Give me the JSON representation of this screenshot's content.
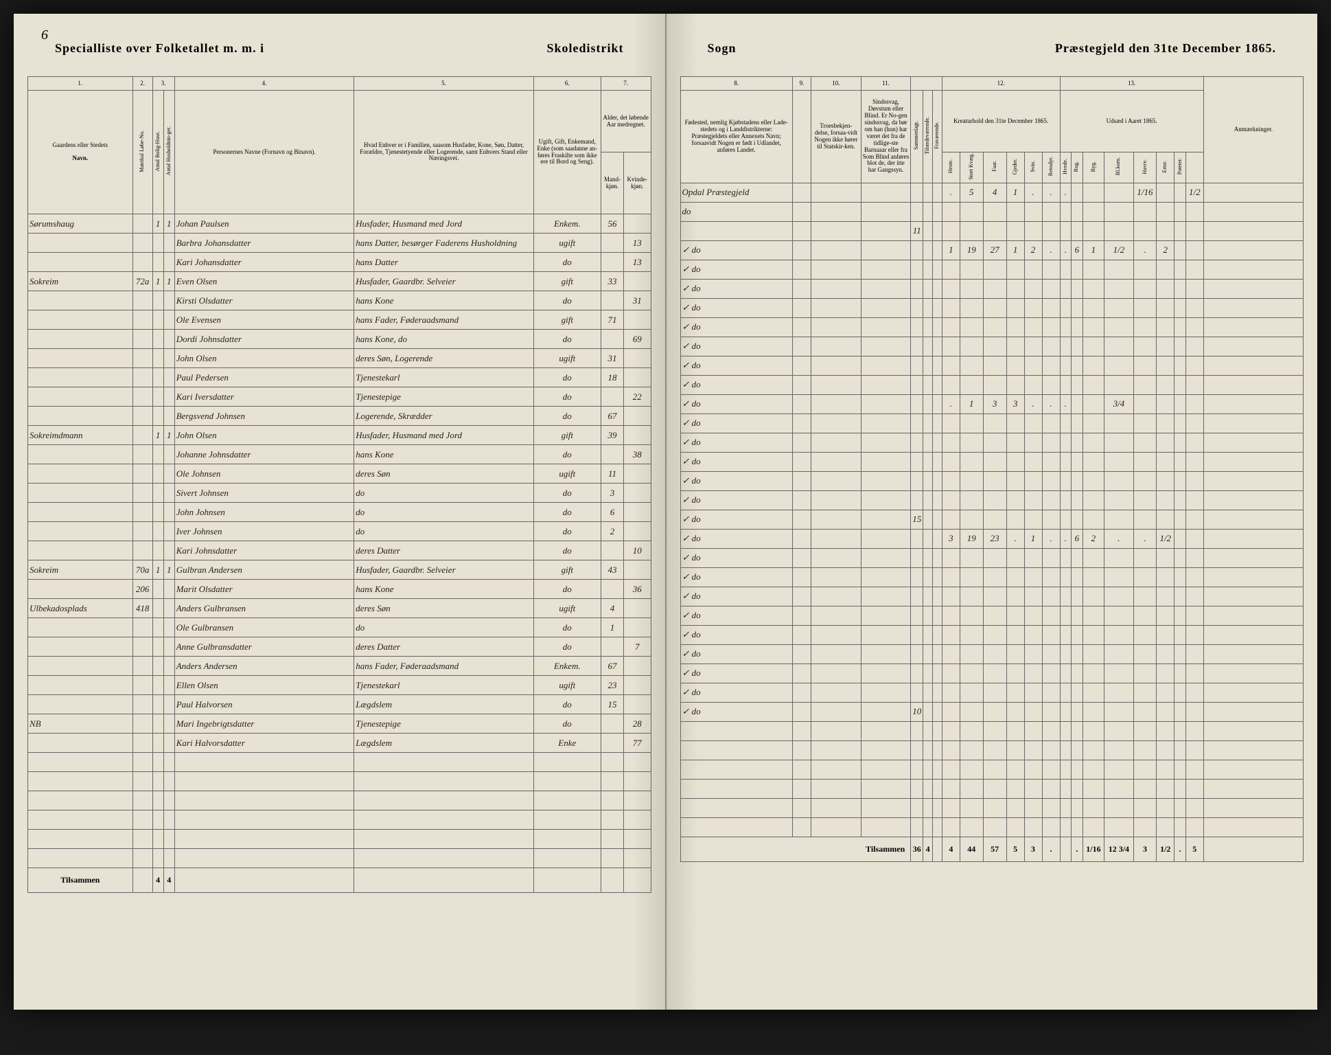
{
  "page_number": "6",
  "header_left": {
    "title1": "Specialliste over Folketallet m. m. i",
    "title2": "Skoledistrikt"
  },
  "header_right": {
    "title1": "Sogn",
    "title2": "Præstegjeld den 31te December 1865."
  },
  "columns_left": {
    "c1": "1.",
    "c2": "2.",
    "c3": "3.",
    "c4": "4.",
    "c5": "5.",
    "c6": "6.",
    "c7": "7.",
    "h1": "Gaardens eller Stedets",
    "h1b": "Navn.",
    "h2a": "Matrikul Løbe-No.",
    "h2b": "Antal Bolig-Huse.",
    "h2c": "Antal Husholdnin-ger.",
    "h4": "Personernes Navne (Fornavn og Binavn).",
    "h5": "Hvad Enhver er i Familien, saasom Husfader, Kone, Søn, Datter, Forældre, Tjenestetyende eller Logerende, samt Enhvers Stand eller Næringsvei.",
    "h6": "Ugift, Gift, Enkemand, Enke (som saadanne an-føres Fraskilte som ikke ere til Bord og Seng).",
    "h7": "Alder, det løbende Aar medregnet.",
    "h7a": "Mand-kjøn.",
    "h7b": "Kvinde-kjøn."
  },
  "columns_right": {
    "c8": "8.",
    "c9": "9.",
    "c10": "10.",
    "c11": "11.",
    "c12": "12.",
    "c13": "13.",
    "h8": "Fødested, nemlig Kjøbstadens eller Lade-stedets og i Landdistrikterne: Præstegjeldets eller Annexets Navn; forsaavidt Nogen er født i Udlandet, anføres Landet.",
    "h9": "",
    "h10": "Troesbekjen-delse, forsaa-vidt Nogen ikke hører til Statskir-ken.",
    "h11": "Sindssvag, Døvstum eller Blind. Er No-gen sindssvag, da bør om han (hun) har været det fra de tidlige-ste Barnaaar eller fra Som Blind anføres blot de, der itte har Gangssyn.",
    "h12": "Kreaturhold den 31te December 1865.",
    "h13": "Udsæd i Aaret 1865.",
    "h_anm": "Anmærkninger.",
    "sub12": [
      "Heste.",
      "Stort Kvæg.",
      "Faar.",
      "Gjeder.",
      "Svin.",
      "Rensdyr."
    ],
    "sub13": [
      "Hvede.",
      "Rug.",
      "Byg.",
      "Bl.korn.",
      "Havre.",
      "Erter.",
      "Poteter."
    ],
    "h11b": [
      "Sammenlagt.",
      "Tilstedeværende.",
      "Fraværende."
    ]
  },
  "rows": [
    {
      "place": "Sørumshaug",
      "mno": "",
      "bh": "1",
      "hh": "1",
      "name": "Johan Paulsen",
      "pos": "Husfader, Husmand med Jord",
      "stat": "Enkem.",
      "m": "56",
      "k": "",
      "birth": "Opdal Præstegjeld",
      "c12": [
        ".",
        "5",
        "4",
        "1",
        ".",
        "."
      ],
      "c13": [
        ".",
        "",
        "",
        "",
        "1/16",
        "",
        "",
        "1/2"
      ]
    },
    {
      "place": "",
      "mno": "",
      "bh": "",
      "hh": "",
      "name": "Barbra Johansdatter",
      "pos": "hans Datter, besørger Faderens Husholdning",
      "stat": "ugift",
      "m": "",
      "k": "13",
      "birth": "do",
      "c12": [],
      "c13": []
    },
    {
      "place": "",
      "mno": "",
      "bh": "",
      "hh": "",
      "name": "Kari Johansdatter",
      "pos": "hans Datter",
      "stat": "do",
      "m": "",
      "k": "13",
      "birth": "",
      "sum": "11",
      "c12": [],
      "c13": []
    },
    {
      "place": "Sokreim",
      "mno": "72a",
      "bh": "1",
      "hh": "1",
      "name": "Even Olsen",
      "pos": "Husfader, Gaardbr. Selveier",
      "stat": "gift",
      "m": "33",
      "k": "",
      "birth": "do",
      "check": "✓",
      "c12": [
        "1",
        "19",
        "27",
        "1",
        "2",
        ".",
        "."
      ],
      "c13": [
        ".",
        "6",
        "1",
        "1/2",
        ".",
        "2"
      ]
    },
    {
      "place": "",
      "mno": "",
      "bh": "",
      "hh": "",
      "name": "Kirsti Olsdatter",
      "pos": "hans Kone",
      "stat": "do",
      "m": "",
      "k": "31",
      "birth": "do",
      "check": "✓",
      "c12": [],
      "c13": []
    },
    {
      "place": "",
      "mno": "",
      "bh": "",
      "hh": "",
      "name": "Ole Evensen",
      "pos": "hans Fader, Føderaadsmand",
      "stat": "gift",
      "m": "71",
      "k": "",
      "birth": "do",
      "check": "✓",
      "c12": [],
      "c13": []
    },
    {
      "place": "",
      "mno": "",
      "bh": "",
      "hh": "",
      "name": "Dordi Johnsdatter",
      "pos": "hans Kone, do",
      "stat": "do",
      "m": "",
      "k": "69",
      "birth": "do",
      "check": "✓",
      "c12": [],
      "c13": []
    },
    {
      "place": "",
      "mno": "",
      "bh": "",
      "hh": "",
      "name": "John Olsen",
      "pos": "deres Søn, Logerende",
      "stat": "ugift",
      "m": "31",
      "k": "",
      "birth": "do",
      "check": "✓",
      "c12": [],
      "c13": []
    },
    {
      "place": "",
      "mno": "",
      "bh": "",
      "hh": "",
      "name": "Paul Pedersen",
      "pos": "Tjenestekarl",
      "stat": "do",
      "m": "18",
      "k": "",
      "birth": "do",
      "check": "✓",
      "c12": [],
      "c13": []
    },
    {
      "place": "",
      "mno": "",
      "bh": "",
      "hh": "",
      "name": "Kari Iversdatter",
      "pos": "Tjenestepige",
      "stat": "do",
      "m": "",
      "k": "22",
      "birth": "do",
      "check": "✓",
      "c12": [],
      "c13": []
    },
    {
      "place": "",
      "mno": "",
      "bh": "",
      "hh": "",
      "name": "Bergsvend Johnsen",
      "pos": "Logerende, Skrædder",
      "stat": "do",
      "m": "67",
      "k": "",
      "birth": "do",
      "check": "✓",
      "c12": [],
      "c13": []
    },
    {
      "place": "Sokreimdmann",
      "mno": "",
      "bh": "1",
      "hh": "1",
      "name": "John Olsen",
      "pos": "Husfader, Husmand med Jord",
      "stat": "gift",
      "m": "39",
      "k": "",
      "birth": "do",
      "check": "✓",
      "c12": [
        ".",
        "1",
        "3",
        "3",
        ".",
        "."
      ],
      "c13": [
        ".",
        "",
        "",
        "3/4",
        "",
        "",
        "",
        ""
      ]
    },
    {
      "place": "",
      "mno": "",
      "bh": "",
      "hh": "",
      "name": "Johanne Johnsdatter",
      "pos": "hans Kone",
      "stat": "do",
      "m": "",
      "k": "38",
      "birth": "do",
      "check": "✓",
      "c12": [],
      "c13": []
    },
    {
      "place": "",
      "mno": "",
      "bh": "",
      "hh": "",
      "name": "Ole Johnsen",
      "pos": "deres Søn",
      "stat": "ugift",
      "m": "11",
      "k": "",
      "birth": "do",
      "check": "✓",
      "c12": [],
      "c13": []
    },
    {
      "place": "",
      "mno": "",
      "bh": "",
      "hh": "",
      "name": "Sivert Johnsen",
      "pos": "do",
      "stat": "do",
      "m": "3",
      "k": "",
      "birth": "do",
      "check": "✓",
      "c12": [],
      "c13": []
    },
    {
      "place": "",
      "mno": "",
      "bh": "",
      "hh": "",
      "name": "John Johnsen",
      "pos": "do",
      "stat": "do",
      "m": "6",
      "k": "",
      "birth": "do",
      "check": "✓",
      "c12": [],
      "c13": []
    },
    {
      "place": "",
      "mno": "",
      "bh": "",
      "hh": "",
      "name": "Iver Johnsen",
      "pos": "do",
      "stat": "do",
      "m": "2",
      "k": "",
      "birth": "do",
      "check": "✓",
      "c12": [],
      "c13": []
    },
    {
      "place": "",
      "mno": "",
      "bh": "",
      "hh": "",
      "name": "Kari Johnsdatter",
      "pos": "deres Datter",
      "stat": "do",
      "m": "",
      "k": "10",
      "birth": "do",
      "check": "✓",
      "sum": "15",
      "c12": [],
      "c13": []
    },
    {
      "place": "Sokreim",
      "mno": "70a",
      "bh": "1",
      "hh": "1",
      "name": "Gulbran Andersen",
      "pos": "Husfader, Gaardbr. Selveier",
      "stat": "gift",
      "m": "43",
      "k": "",
      "birth": "do",
      "check": "✓",
      "c12": [
        "3",
        "19",
        "23",
        ".",
        "1",
        ".",
        "."
      ],
      "c13": [
        ".",
        "6",
        "2",
        ".",
        ".",
        "1/2"
      ]
    },
    {
      "place": "",
      "mno": "206",
      "bh": "",
      "hh": "",
      "name": "Marit Olsdatter",
      "pos": "hans Kone",
      "stat": "do",
      "m": "",
      "k": "36",
      "birth": "do",
      "check": "✓",
      "c12": [],
      "c13": []
    },
    {
      "place": "Ulbekadosplads",
      "mno": "418",
      "bh": "",
      "hh": "",
      "name": "Anders Gulbransen",
      "pos": "deres Søn",
      "stat": "ugift",
      "m": "4",
      "k": "",
      "birth": "do",
      "check": "✓",
      "c12": [],
      "c13": []
    },
    {
      "place": "",
      "mno": "",
      "bh": "",
      "hh": "",
      "name": "Ole Gulbransen",
      "pos": "do",
      "stat": "do",
      "m": "1",
      "k": "",
      "birth": "do",
      "check": "✓",
      "c12": [],
      "c13": []
    },
    {
      "place": "",
      "mno": "",
      "bh": "",
      "hh": "",
      "name": "Anne Gulbransdatter",
      "pos": "deres Datter",
      "stat": "do",
      "m": "",
      "k": "7",
      "birth": "do",
      "check": "✓",
      "c12": [],
      "c13": []
    },
    {
      "place": "",
      "mno": "",
      "bh": "",
      "hh": "",
      "name": "Anders Andersen",
      "pos": "hans Fader, Føderaadsmand",
      "stat": "Enkem.",
      "m": "67",
      "k": "",
      "birth": "do",
      "check": "✓",
      "c12": [],
      "c13": []
    },
    {
      "place": "",
      "mno": "",
      "bh": "",
      "hh": "",
      "name": "Ellen Olsen",
      "pos": "Tjenestekarl",
      "stat": "ugift",
      "m": "23",
      "k": "",
      "birth": "do",
      "check": "✓",
      "c12": [],
      "c13": []
    },
    {
      "place": "",
      "mno": "",
      "bh": "",
      "hh": "",
      "name": "Paul Halvorsen",
      "pos": "Lægdslem",
      "stat": "do",
      "m": "15",
      "k": "",
      "birth": "do",
      "check": "✓",
      "c12": [],
      "c13": []
    },
    {
      "place": "NB",
      "mno": "",
      "bh": "",
      "hh": "",
      "name": "Mari Ingebrigtsdatter",
      "pos": "Tjenestepige",
      "stat": "do",
      "m": "",
      "k": "28",
      "birth": "do",
      "check": "✓",
      "c12": [],
      "c13": []
    },
    {
      "place": "",
      "mno": "",
      "bh": "",
      "hh": "",
      "name": "Kari Halvorsdatter",
      "pos": "Lægdslem",
      "stat": "Enke",
      "m": "",
      "k": "77",
      "birth": "do",
      "check": "✓",
      "sum": "10",
      "c12": [],
      "c13": []
    }
  ],
  "footer": {
    "label": "Tilsammen",
    "left": [
      "",
      "4",
      "4"
    ],
    "right": [
      "36",
      "4",
      "",
      "4",
      "44",
      "57",
      "5",
      "3",
      ".",
      "",
      ".",
      "1/16",
      "12 3/4",
      "3",
      "1/2",
      ".",
      "5"
    ]
  },
  "colors": {
    "paper": "#e8e2d4",
    "ink": "#2a2015",
    "border": "#666666",
    "background": "#1a1a1a"
  }
}
